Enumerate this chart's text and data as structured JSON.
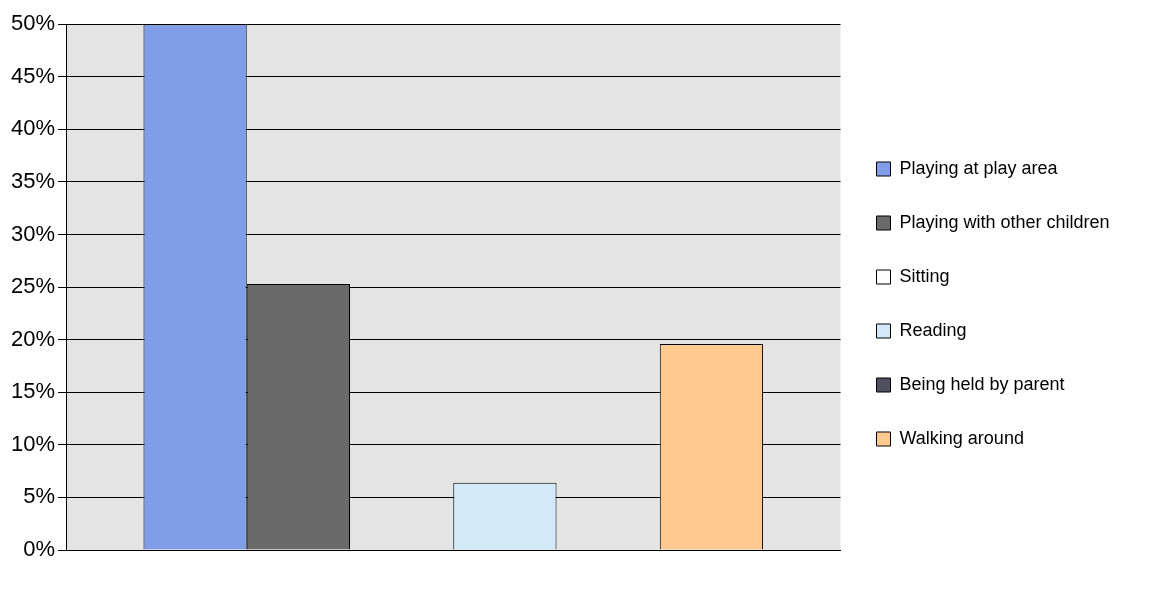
{
  "chart_data": {
    "type": "bar",
    "categories": [
      null
    ],
    "series": [
      {
        "name": "Playing at play area",
        "color": "#809ee8",
        "values": [
          50
        ]
      },
      {
        "name": "Playing with other children",
        "color": "#6a6a6a",
        "values": [
          25.3
        ]
      },
      {
        "name": "Sitting",
        "color": "#ffffff",
        "values": [
          0
        ]
      },
      {
        "name": "Reading",
        "color": "#d2e9f8",
        "values": [
          6.4
        ]
      },
      {
        "name": "Being held by parent",
        "color": "#505060",
        "values": [
          0
        ]
      },
      {
        "name": "Walking around",
        "color": "#ffc98f",
        "values": [
          19.6
        ]
      }
    ],
    "ylim": [
      0,
      50
    ],
    "yticks": [
      {
        "value": 0,
        "label": "0%"
      },
      {
        "value": 5,
        "label": "5%"
      },
      {
        "value": 10,
        "label": "10%"
      },
      {
        "value": 15,
        "label": "15%"
      },
      {
        "value": 20,
        "label": "20%"
      },
      {
        "value": 25,
        "label": "25%"
      },
      {
        "value": 30,
        "label": "30%"
      },
      {
        "value": 35,
        "label": "35%"
      },
      {
        "value": 40,
        "label": "40%"
      },
      {
        "value": 45,
        "label": "45%"
      },
      {
        "value": 50,
        "label": "50%"
      }
    ],
    "grid": "y",
    "legend": "right"
  }
}
